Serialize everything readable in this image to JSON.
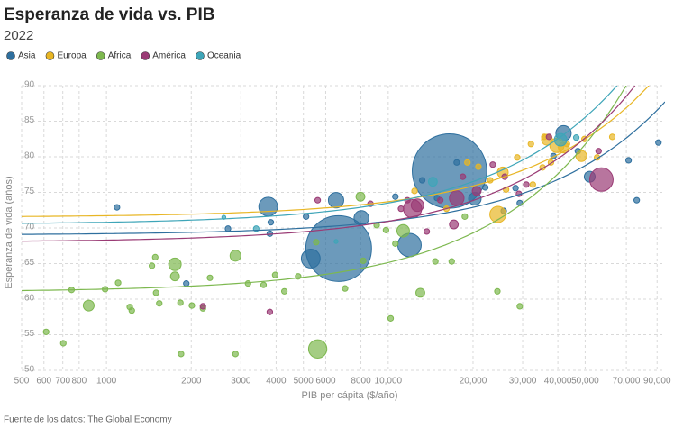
{
  "chart_data": {
    "type": "scatter",
    "title": "Esperanza de vida vs. PIB",
    "subtitle": "2022",
    "x_label": "PIB per cápita ($/año)",
    "y_label": "Esperanza de vida (años)",
    "source": "Fuente de los datos: The Global Economy",
    "x_log": true,
    "grid": true,
    "legend": "top-left",
    "xlim": [
      500,
      96000
    ],
    "ylim": [
      50,
      90
    ],
    "xticks": [
      500,
      600,
      700,
      800,
      1000,
      2000,
      3000,
      4000,
      5000,
      6000,
      8000,
      {
        "value": 10000,
        "label": "10,000"
      },
      {
        "value": 20000,
        "label": "20,000"
      },
      {
        "value": 30000,
        "label": "30,000"
      },
      {
        "value": 40000,
        "label": "40,000"
      },
      {
        "value": 50000,
        "label": "50,000"
      },
      {
        "value": 70000,
        "label": "70,000"
      },
      {
        "value": 90000,
        "label": "90,000"
      }
    ],
    "yticks": [
      50,
      55,
      60,
      65,
      70,
      75,
      80,
      85,
      90
    ],
    "series": [
      {
        "name": "Asia",
        "color": "#2e6f9e",
        "trend_intercept": 69,
        "trend_slope": 0.000195,
        "x": [
          16500,
          6670,
          11900,
          3750,
          5310,
          6530,
          8030,
          17500,
          41900,
          20300,
          51900,
          1090,
          2700,
          3830,
          5110,
          3800,
          10600,
          13200,
          14900,
          22100,
          25700,
          28300,
          29300,
          38600,
          47100,
          71300,
          76200,
          91000,
          1920
        ],
        "values": [
          78.0,
          67.1,
          67.6,
          73.0,
          65.7,
          73.9,
          71.4,
          79.2,
          83.3,
          74.1,
          77.2,
          72.9,
          69.9,
          70.8,
          71.6,
          69.2,
          74.4,
          76.7,
          74.2,
          75.7,
          72.4,
          75.6,
          73.5,
          80.1,
          80.8,
          79.5,
          73.9,
          82.0,
          62.2
        ],
        "sizes": [
          1412,
          1100,
          140,
          90,
          90,
          60,
          55,
          8,
          60,
          40,
          30,
          8,
          8,
          8,
          8,
          8,
          8,
          8,
          8,
          8,
          8,
          8,
          8,
          8,
          8,
          8,
          8,
          8,
          8
        ]
      },
      {
        "name": "Europa",
        "color": "#e8b625",
        "trend_intercept": 71.5,
        "trend_slope": 0.00022,
        "x": [
          39700,
          36600,
          42000,
          24500,
          48500,
          25500,
          26200,
          28700,
          32100,
          32600,
          35300,
          37800,
          43100,
          49700,
          55100,
          62400,
          19100,
          35800,
          12400,
          16100,
          23000,
          20900
        ],
        "values": [
          81.6,
          82.4,
          81.3,
          71.9,
          80.1,
          77.8,
          75.4,
          79.9,
          81.8,
          76.1,
          78.5,
          79.2,
          81.8,
          82.5,
          79.9,
          82.8,
          79.2,
          82.8,
          75.2,
          72.7,
          76.7,
          78.6
        ],
        "sizes": [
          52,
          30,
          30,
          66,
          30,
          30,
          8,
          8,
          8,
          8,
          8,
          8,
          8,
          8,
          8,
          8,
          8,
          8,
          8,
          8,
          8,
          8
        ]
      },
      {
        "name": "Africa",
        "color": "#7db84f",
        "trend_intercept": 61,
        "trend_slope": 0.000415,
        "x": [
          5620,
          1750,
          865,
          2870,
          11300,
          7970,
          13000,
          1750,
          611,
          703,
          752,
          989,
          1100,
          1210,
          1230,
          1450,
          1500,
          1540,
          1830,
          2010,
          2200,
          1840,
          1490,
          3180,
          3610,
          3970,
          4280,
          4790,
          5550,
          7030,
          8150,
          9820,
          9100,
          10600,
          10200,
          14700,
          16800,
          18700,
          24400,
          29300,
          2330,
          2870
        ],
        "values": [
          53.0,
          64.9,
          59.1,
          66.1,
          69.6,
          74.4,
          60.9,
          63.2,
          55.4,
          53.8,
          61.3,
          61.4,
          62.3,
          58.9,
          58.4,
          64.7,
          60.9,
          59.4,
          59.5,
          59.1,
          58.7,
          52.3,
          65.9,
          62.2,
          62.0,
          63.4,
          61.1,
          63.2,
          68.0,
          61.5,
          65.4,
          69.7,
          70.4,
          67.8,
          57.3,
          65.3,
          65.3,
          71.6,
          61.1,
          59.0,
          63.0,
          52.3
        ],
        "sizes": [
          85,
          40,
          30,
          30,
          40,
          20,
          20,
          20,
          8,
          8,
          8,
          8,
          8,
          8,
          8,
          8,
          8,
          8,
          8,
          8,
          8,
          8,
          8,
          8,
          8,
          8,
          8,
          8,
          8,
          8,
          8,
          8,
          8,
          8,
          8,
          8,
          8,
          8,
          8,
          8,
          8,
          8
        ]
      },
      {
        "name": "América",
        "color": "#9a3b75",
        "trend_intercept": 68,
        "trend_slope": 0.000293,
        "x": [
          57100,
          12200,
          17500,
          12700,
          20600,
          17100,
          2200,
          3800,
          11100,
          15300,
          23500,
          25900,
          30900,
          37200,
          55800,
          18400,
          29100,
          13700,
          8650,
          5620,
          11700
        ],
        "values": [
          76.8,
          72.7,
          74.2,
          73.2,
          75.2,
          70.5,
          59.0,
          58.2,
          72.7,
          73.9,
          78.9,
          77.2,
          76.1,
          82.8,
          80.8,
          77.2,
          74.8,
          69.5,
          73.4,
          73.9,
          73.9
        ],
        "sizes": [
          140,
          85,
          55,
          40,
          20,
          20,
          8,
          8,
          8,
          8,
          8,
          8,
          8,
          8,
          8,
          8,
          8,
          8,
          8,
          8,
          8
        ]
      },
      {
        "name": "Oceania",
        "color": "#3ea5b8",
        "trend_intercept": 70.5,
        "trend_slope": 0.000301,
        "x": [
          40900,
          14400,
          46500,
          3400,
          2610,
          6530
        ],
        "values": [
          82.4,
          76.5,
          82.7,
          69.9,
          71.5,
          68.1
        ],
        "sizes": [
          40,
          20,
          8,
          8,
          4,
          4
        ]
      }
    ]
  }
}
